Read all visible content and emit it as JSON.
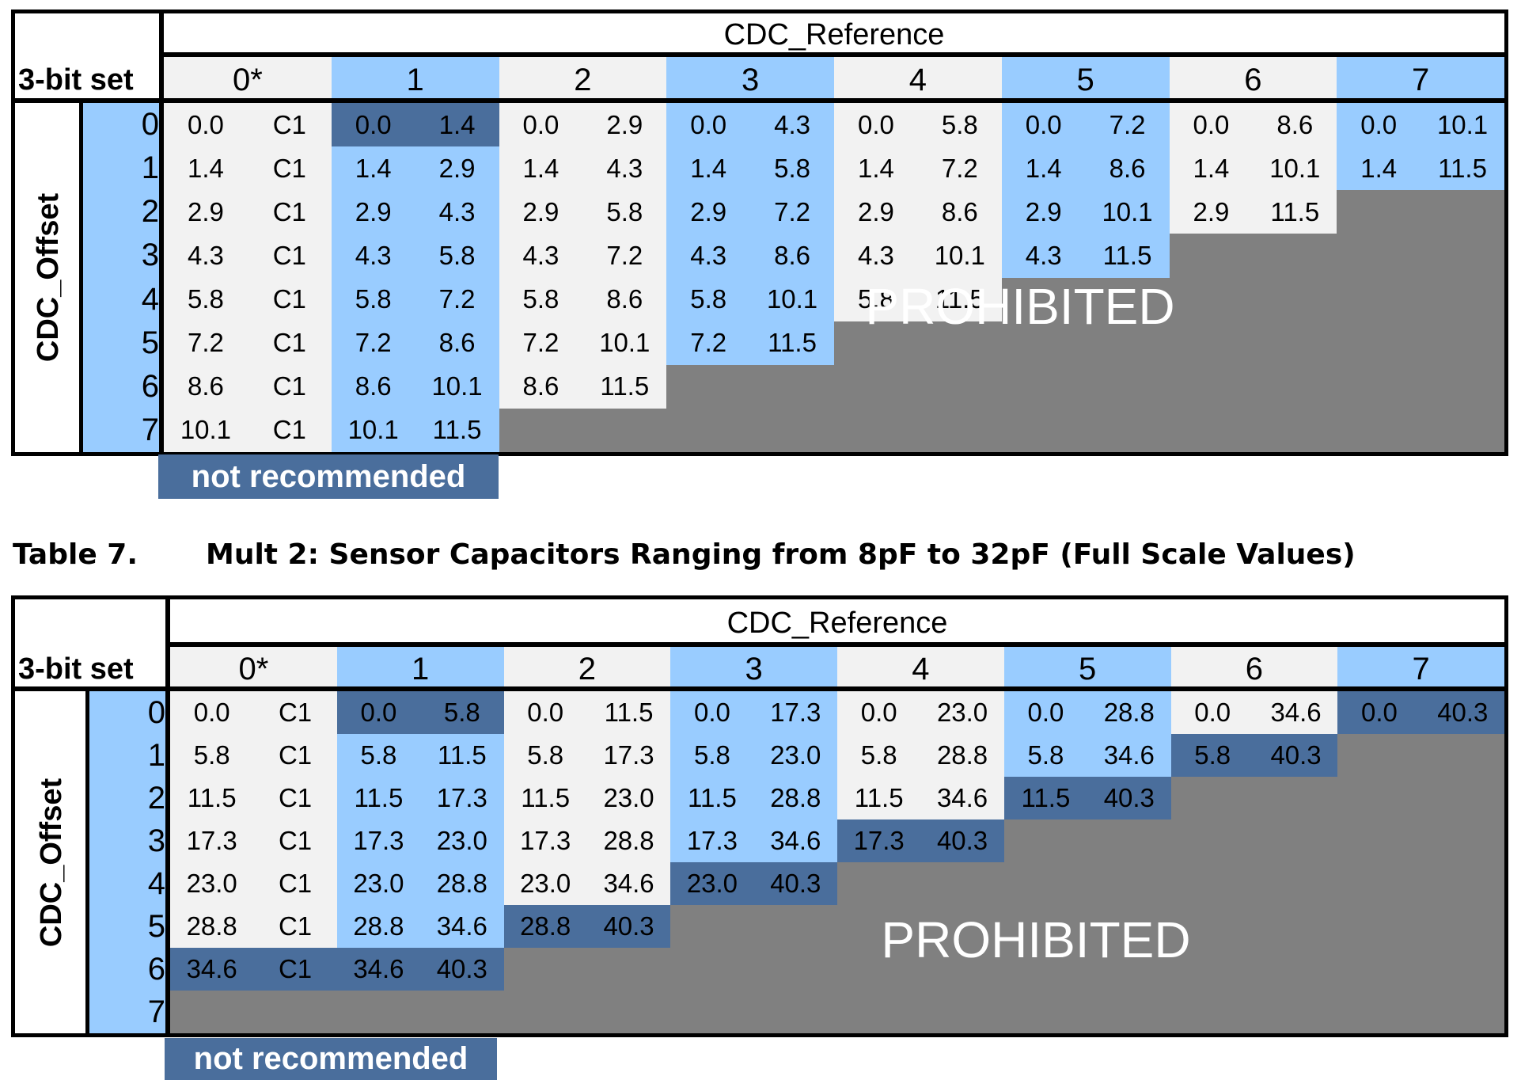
{
  "colors": {
    "light_gray": "#f2f2f2",
    "light_blue": "#99ccff",
    "dark_blue": "#4a6e9c",
    "gray": "#808080",
    "black": "#000000"
  },
  "table1": {
    "header_title": "CDC_Reference",
    "set_label": "3-bit set",
    "row_axis_label": "CDC_Offset",
    "columns": [
      "0*",
      "1",
      "2",
      "3",
      "4",
      "5",
      "6",
      "7"
    ],
    "rows": [
      "0",
      "1",
      "2",
      "3",
      "4",
      "5",
      "6",
      "7"
    ],
    "cells": [
      [
        [
          "0.0",
          "C1"
        ],
        [
          "0.0",
          "1.4"
        ],
        [
          "0.0",
          "2.9"
        ],
        [
          "0.0",
          "4.3"
        ],
        [
          "0.0",
          "5.8"
        ],
        [
          "0.0",
          "7.2"
        ],
        [
          "0.0",
          "8.6"
        ],
        [
          "0.0",
          "10.1"
        ]
      ],
      [
        [
          "1.4",
          "C1"
        ],
        [
          "1.4",
          "2.9"
        ],
        [
          "1.4",
          "4.3"
        ],
        [
          "1.4",
          "5.8"
        ],
        [
          "1.4",
          "7.2"
        ],
        [
          "1.4",
          "8.6"
        ],
        [
          "1.4",
          "10.1"
        ],
        [
          "1.4",
          "11.5"
        ]
      ],
      [
        [
          "2.9",
          "C1"
        ],
        [
          "2.9",
          "4.3"
        ],
        [
          "2.9",
          "5.8"
        ],
        [
          "2.9",
          "7.2"
        ],
        [
          "2.9",
          "8.6"
        ],
        [
          "2.9",
          "10.1"
        ],
        [
          "2.9",
          "11.5"
        ],
        null
      ],
      [
        [
          "4.3",
          "C1"
        ],
        [
          "4.3",
          "5.8"
        ],
        [
          "4.3",
          "7.2"
        ],
        [
          "4.3",
          "8.6"
        ],
        [
          "4.3",
          "10.1"
        ],
        [
          "4.3",
          "11.5"
        ],
        null,
        null
      ],
      [
        [
          "5.8",
          "C1"
        ],
        [
          "5.8",
          "7.2"
        ],
        [
          "5.8",
          "8.6"
        ],
        [
          "5.8",
          "10.1"
        ],
        [
          "5.8",
          "11.5"
        ],
        null,
        null,
        null
      ],
      [
        [
          "7.2",
          "C1"
        ],
        [
          "7.2",
          "8.6"
        ],
        [
          "7.2",
          "10.1"
        ],
        [
          "7.2",
          "11.5"
        ],
        null,
        null,
        null,
        null
      ],
      [
        [
          "8.6",
          "C1"
        ],
        [
          "8.6",
          "10.1"
        ],
        [
          "8.6",
          "11.5"
        ],
        null,
        null,
        null,
        null,
        null
      ],
      [
        [
          "10.1",
          "C1"
        ],
        [
          "10.1",
          "11.5"
        ],
        null,
        null,
        null,
        null,
        null,
        null
      ]
    ],
    "dark_cells": [
      [
        0,
        1
      ]
    ],
    "prohibited_text": "PROHIBITED",
    "note": "not recommended"
  },
  "caption": {
    "number": "Table 7.",
    "title": "Mult 2: Sensor Capacitors Ranging from 8pF to 32pF (Full Scale Values)"
  },
  "table2": {
    "header_title": "CDC_Reference",
    "set_label": "3-bit set",
    "row_axis_label": "CDC_Offset",
    "columns": [
      "0*",
      "1",
      "2",
      "3",
      "4",
      "5",
      "6",
      "7"
    ],
    "rows": [
      "0",
      "1",
      "2",
      "3",
      "4",
      "5",
      "6",
      "7"
    ],
    "cells": [
      [
        [
          "0.0",
          "C1"
        ],
        [
          "0.0",
          "5.8"
        ],
        [
          "0.0",
          "11.5"
        ],
        [
          "0.0",
          "17.3"
        ],
        [
          "0.0",
          "23.0"
        ],
        [
          "0.0",
          "28.8"
        ],
        [
          "0.0",
          "34.6"
        ],
        [
          "0.0",
          "40.3"
        ]
      ],
      [
        [
          "5.8",
          "C1"
        ],
        [
          "5.8",
          "11.5"
        ],
        [
          "5.8",
          "17.3"
        ],
        [
          "5.8",
          "23.0"
        ],
        [
          "5.8",
          "28.8"
        ],
        [
          "5.8",
          "34.6"
        ],
        [
          "5.8",
          "40.3"
        ],
        null
      ],
      [
        [
          "11.5",
          "C1"
        ],
        [
          "11.5",
          "17.3"
        ],
        [
          "11.5",
          "23.0"
        ],
        [
          "11.5",
          "28.8"
        ],
        [
          "11.5",
          "34.6"
        ],
        [
          "11.5",
          "40.3"
        ],
        null,
        null
      ],
      [
        [
          "17.3",
          "C1"
        ],
        [
          "17.3",
          "23.0"
        ],
        [
          "17.3",
          "28.8"
        ],
        [
          "17.3",
          "34.6"
        ],
        [
          "17.3",
          "40.3"
        ],
        null,
        null,
        null
      ],
      [
        [
          "23.0",
          "C1"
        ],
        [
          "23.0",
          "28.8"
        ],
        [
          "23.0",
          "34.6"
        ],
        [
          "23.0",
          "40.3"
        ],
        null,
        null,
        null,
        null
      ],
      [
        [
          "28.8",
          "C1"
        ],
        [
          "28.8",
          "34.6"
        ],
        [
          "28.8",
          "40.3"
        ],
        null,
        null,
        null,
        null,
        null
      ],
      [
        [
          "34.6",
          "C1"
        ],
        [
          "34.6",
          "40.3"
        ],
        null,
        null,
        null,
        null,
        null,
        null
      ],
      [
        null,
        null,
        null,
        null,
        null,
        null,
        null,
        null
      ]
    ],
    "dark_cells": [
      [
        0,
        1
      ],
      [
        0,
        7
      ],
      [
        1,
        6
      ],
      [
        2,
        5
      ],
      [
        3,
        4
      ],
      [
        4,
        3
      ],
      [
        5,
        2
      ],
      [
        6,
        0
      ],
      [
        6,
        1
      ]
    ],
    "prohibited_text": "PROHIBITED",
    "note": "not recommended"
  }
}
